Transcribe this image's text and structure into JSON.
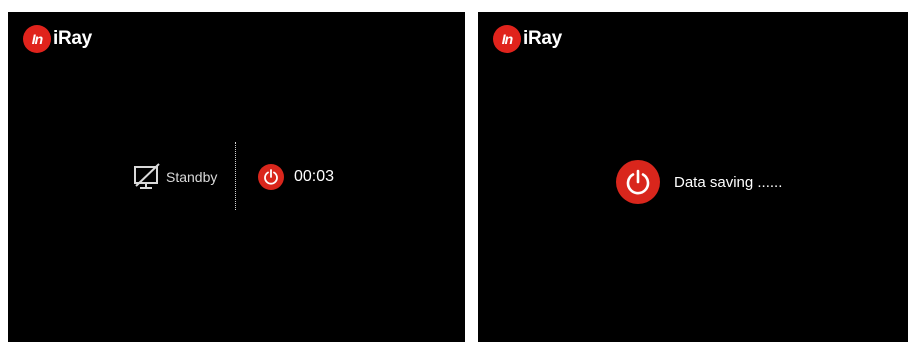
{
  "brand": {
    "badge_text": "In",
    "text": "iRay",
    "accent_color": "#e0231c"
  },
  "left_screen": {
    "standby_label": "Standby",
    "monitor_icon": "monitor-off-icon",
    "power_icon": "power-icon",
    "countdown": "00:03"
  },
  "right_screen": {
    "power_icon": "power-icon",
    "status_text": "Data saving ......"
  },
  "colors": {
    "screen_bg": "#000000",
    "power_red": "#d9261c"
  }
}
